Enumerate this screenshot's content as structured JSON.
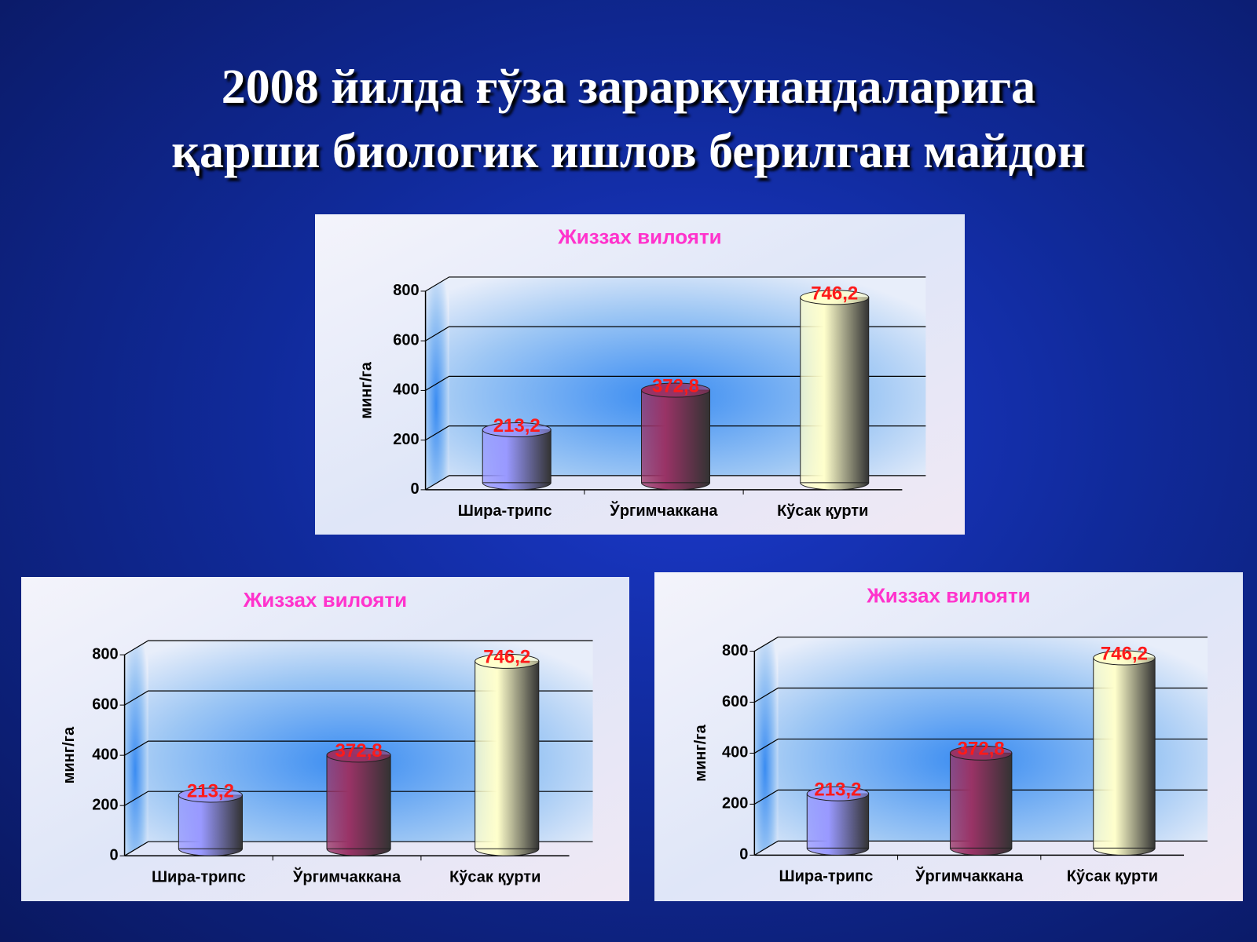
{
  "title": [
    "2008 йилда ғўза зараркунандаларига",
    "қарши биологик ишлов берилган майдон"
  ],
  "chart_data": [
    {
      "type": "bar",
      "title": "Жиззах вилояти",
      "y_label": "минг/га",
      "categories": [
        "Шира-трипс",
        "Ўргимчаккана",
        "Кўсак қурти"
      ],
      "values": [
        213.2,
        372.8,
        746.2
      ],
      "value_labels": [
        "213,2",
        "372,8",
        "746,2"
      ],
      "colors": [
        "#9999ff",
        "#993366",
        "#ffffcc"
      ],
      "ylim": [
        0,
        800
      ],
      "yticks": [
        0,
        200,
        400,
        600,
        800
      ],
      "grid": true
    },
    {
      "type": "bar",
      "title": "Жиззах вилояти",
      "y_label": "минг/га",
      "categories": [
        "Шира-трипс",
        "Ўргимчаккана",
        "Кўсак қурти"
      ],
      "values": [
        213.2,
        372.8,
        746.2
      ],
      "value_labels": [
        "213,2",
        "372,8",
        "746,2"
      ],
      "colors": [
        "#9999ff",
        "#993366",
        "#ffffcc"
      ],
      "ylim": [
        0,
        800
      ],
      "yticks": [
        0,
        200,
        400,
        600,
        800
      ],
      "grid": true
    },
    {
      "type": "bar",
      "title": "Жиззах вилояти",
      "y_label": "минг/га",
      "categories": [
        "Шира-трипс",
        "Ўргимчаккана",
        "Кўсак қурти"
      ],
      "values": [
        213.2,
        372.8,
        746.2
      ],
      "value_labels": [
        "213,2",
        "372,8",
        "746,2"
      ],
      "colors": [
        "#9999ff",
        "#993366",
        "#ffffcc"
      ],
      "ylim": [
        0,
        800
      ],
      "yticks": [
        0,
        200,
        400,
        600,
        800
      ],
      "grid": true
    }
  ]
}
